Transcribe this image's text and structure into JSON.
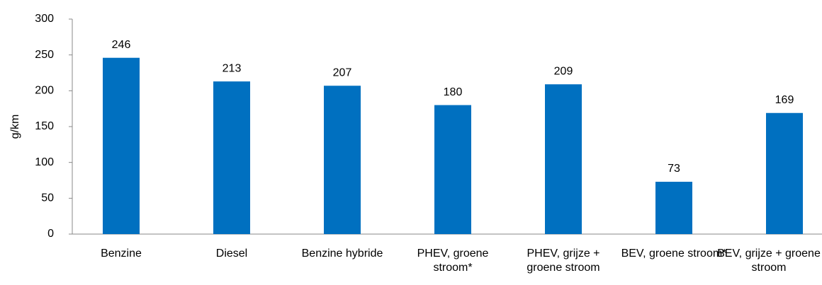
{
  "chart_data": {
    "type": "bar",
    "y_label": "g/km",
    "categories": [
      "Benzine",
      "Diesel",
      "Benzine hybride",
      "PHEV, groene stroom*",
      "PHEV, grijze + groene stroom",
      "BEV, groene stroom*",
      "BEV, grijze + groene stroom"
    ],
    "values": [
      246,
      213,
      207,
      180,
      209,
      73,
      169
    ],
    "color": "#0070c0",
    "ylim": [
      0,
      300
    ],
    "yticks": [
      0,
      50,
      100,
      150,
      200,
      250,
      300
    ],
    "grid": false
  }
}
